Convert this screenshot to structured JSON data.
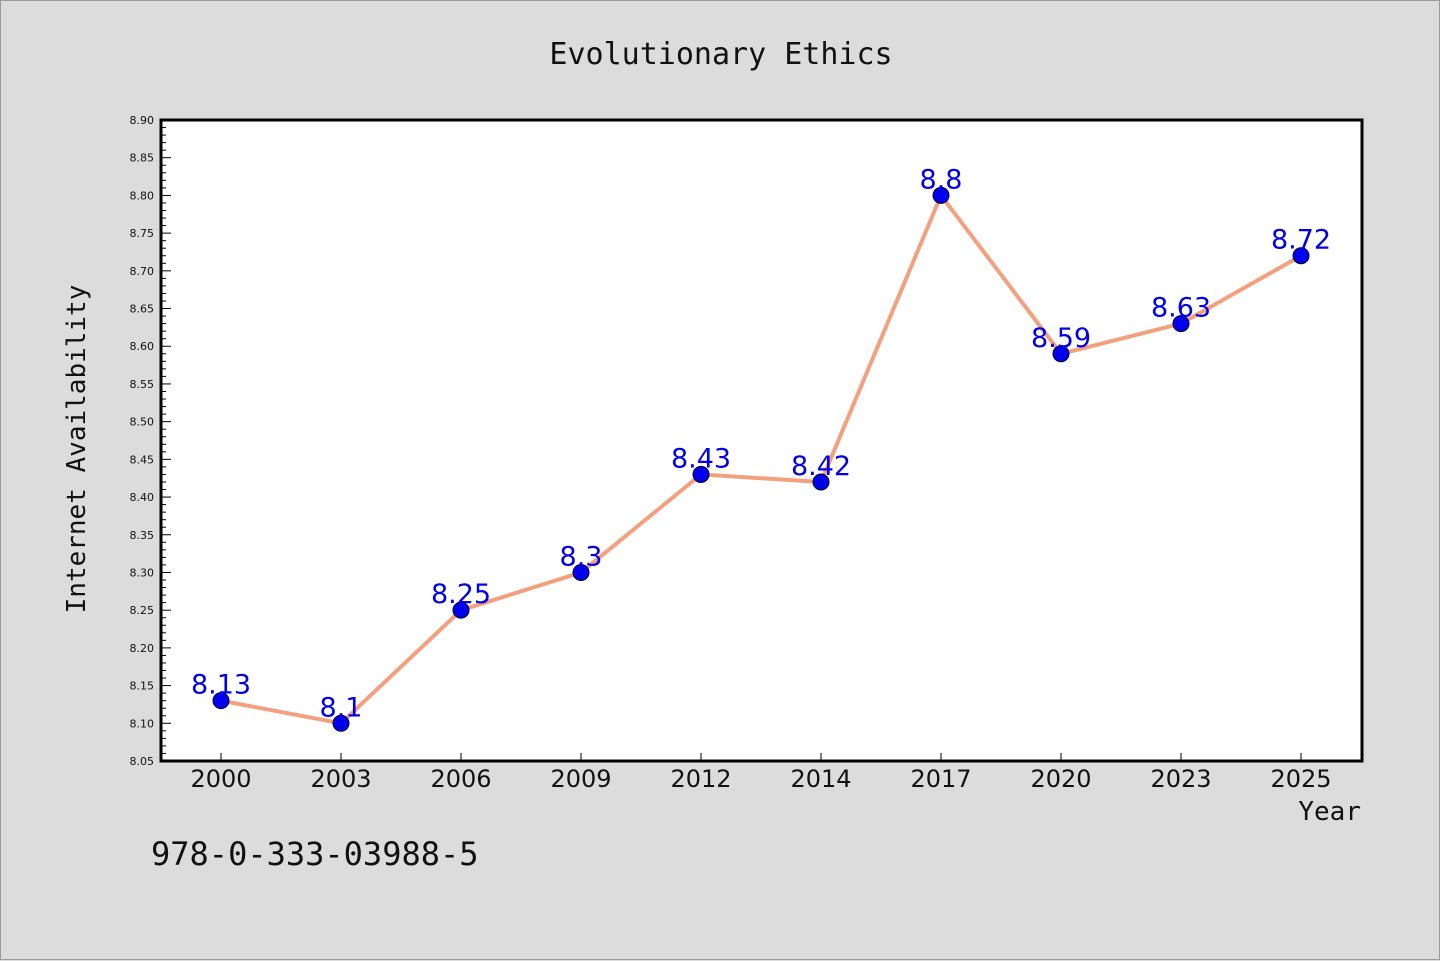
{
  "chart_data": {
    "type": "line",
    "title": "Evolutionary Ethics",
    "xlabel": "Year",
    "ylabel": "Internet Availability",
    "categories": [
      "2000",
      "2003",
      "2006",
      "2009",
      "2012",
      "2014",
      "2017",
      "2020",
      "2023",
      "2025"
    ],
    "series": [
      {
        "values": [
          8.13,
          8.1,
          8.25,
          8.3,
          8.43,
          8.42,
          8.8,
          8.59,
          8.63,
          8.72
        ],
        "data_labels": [
          "8.13",
          "8.1",
          "8.25",
          "8.3",
          "8.43",
          "8.42",
          "8.8",
          "8.59",
          "8.63",
          "8.72"
        ],
        "line_color": "#f4a07f",
        "marker_color": "#0000ee",
        "label_color": "#0000ee"
      }
    ],
    "ylim": [
      8.05,
      8.9
    ],
    "yticks": [
      "8.05",
      "8.10",
      "8.15",
      "8.20",
      "8.25",
      "8.30",
      "8.35",
      "8.40",
      "8.45",
      "8.50",
      "8.55",
      "8.60",
      "8.65",
      "8.70",
      "8.75",
      "8.80",
      "8.85",
      "8.90"
    ],
    "grid": false,
    "legend": "none",
    "footnote": "978-0-333-03988-5",
    "colors": {
      "background": "#dcdcdc",
      "plot_background": "#ffffff",
      "axis": "#000000"
    }
  }
}
